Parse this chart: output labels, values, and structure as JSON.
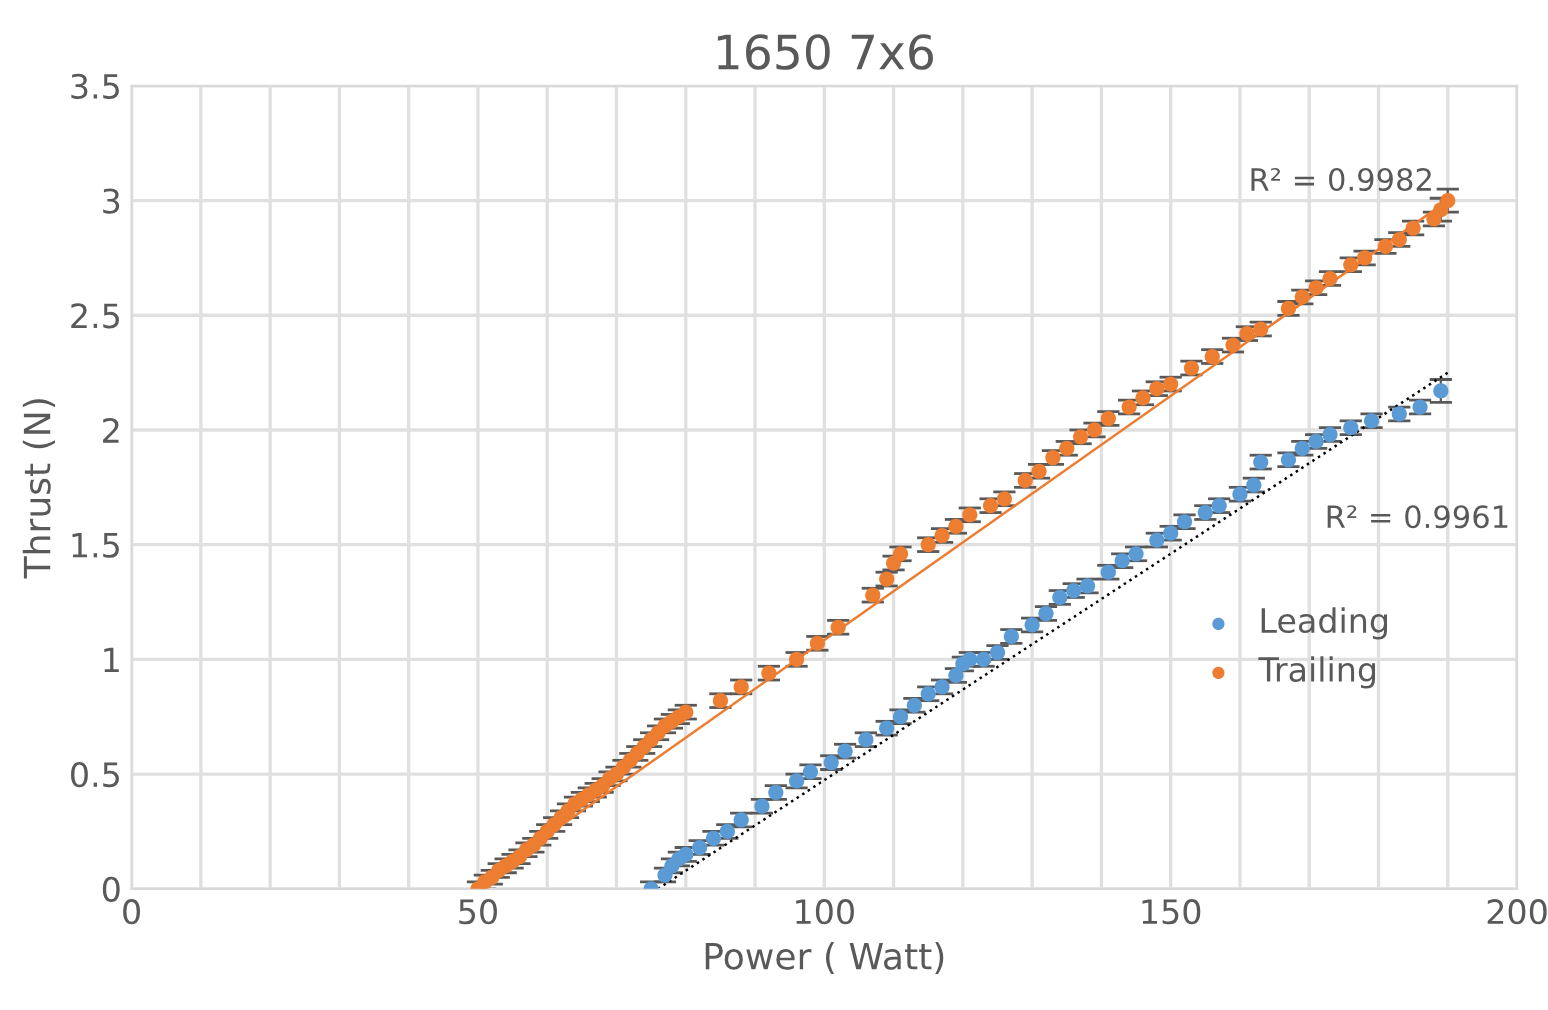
{
  "chart_data": {
    "type": "scatter",
    "title": "1650 7x6",
    "xlabel": "Power ( Watt)",
    "ylabel": "Thrust (N)",
    "xlim": [
      0,
      200
    ],
    "ylim": [
      0,
      3.5
    ],
    "xticks": [
      0,
      {
        "value": 10,
        "label": null
      },
      {
        "value": 20,
        "label": null
      },
      {
        "value": 30,
        "label": null
      },
      {
        "value": 40,
        "label": null
      },
      50,
      {
        "value": 60,
        "label": null
      },
      {
        "value": 70,
        "label": null
      },
      {
        "value": 80,
        "label": null
      },
      {
        "value": 90,
        "label": null
      },
      100,
      {
        "value": 110,
        "label": null
      },
      {
        "value": 120,
        "label": null
      },
      {
        "value": 130,
        "label": null
      },
      {
        "value": 140,
        "label": null
      },
      150,
      {
        "value": 160,
        "label": null
      },
      {
        "value": 170,
        "label": null
      },
      {
        "value": 180,
        "label": null
      },
      {
        "value": 190,
        "label": null
      },
      200
    ],
    "yticks": [
      0,
      0.5,
      1,
      1.5,
      2,
      2.5,
      3,
      3.5
    ],
    "grid": true,
    "legend": "right",
    "series": [
      {
        "name": "Leading",
        "color": "#5b9bd5",
        "marker": "circle",
        "x": [
          75,
          77,
          78,
          79,
          80,
          82,
          84,
          86,
          88,
          91,
          93,
          96,
          98,
          101,
          103,
          106,
          109,
          111,
          113,
          115,
          117,
          119,
          120,
          121,
          123,
          125,
          127,
          130,
          132,
          134,
          136,
          138,
          141,
          143,
          145,
          148,
          150,
          152,
          155,
          157,
          160,
          162,
          163,
          167,
          169,
          171,
          173,
          176,
          179,
          183,
          186,
          189
        ],
        "values": [
          0,
          0.06,
          0.1,
          0.13,
          0.15,
          0.18,
          0.22,
          0.25,
          0.3,
          0.36,
          0.42,
          0.47,
          0.51,
          0.55,
          0.6,
          0.65,
          0.7,
          0.75,
          0.8,
          0.85,
          0.88,
          0.93,
          0.98,
          1.0,
          1.0,
          1.03,
          1.1,
          1.15,
          1.2,
          1.27,
          1.3,
          1.32,
          1.38,
          1.43,
          1.46,
          1.52,
          1.55,
          1.6,
          1.64,
          1.67,
          1.72,
          1.76,
          1.86,
          1.87,
          1.92,
          1.95,
          1.98,
          2.01,
          2.04,
          2.07,
          2.1,
          2.17
        ],
        "errors": [
          0.03,
          0.03,
          0.03,
          0.03,
          0.03,
          0.03,
          0.03,
          0.03,
          0.03,
          0.03,
          0.03,
          0.03,
          0.03,
          0.03,
          0.03,
          0.03,
          0.03,
          0.03,
          0.03,
          0.03,
          0.03,
          0.03,
          0.03,
          0.03,
          0.03,
          0.03,
          0.03,
          0.03,
          0.03,
          0.03,
          0.03,
          0.03,
          0.03,
          0.03,
          0.03,
          0.03,
          0.03,
          0.03,
          0.03,
          0.03,
          0.03,
          0.03,
          0.03,
          0.03,
          0.03,
          0.03,
          0.03,
          0.03,
          0.03,
          0.03,
          0.03,
          0.05
        ]
      },
      {
        "name": "Trailing",
        "color": "#ed7d31",
        "marker": "circle",
        "x": [
          50,
          51,
          52,
          53,
          54,
          55,
          56,
          57,
          58,
          59,
          60,
          61,
          62,
          63,
          64,
          65,
          66,
          67,
          68,
          69,
          70,
          71,
          72,
          73,
          74,
          75,
          76,
          77,
          78,
          79,
          80,
          85,
          88,
          92,
          96,
          99,
          102,
          107,
          109,
          110,
          111,
          115,
          117,
          119,
          121,
          124,
          126,
          129,
          131,
          133,
          135,
          137,
          139,
          141,
          144,
          146,
          148,
          150,
          153,
          156,
          159,
          161,
          163,
          167,
          169,
          171,
          173,
          176,
          178,
          181,
          183,
          185,
          188,
          189,
          190
        ],
        "values": [
          0,
          0.03,
          0.05,
          0.08,
          0.1,
          0.12,
          0.14,
          0.17,
          0.19,
          0.22,
          0.25,
          0.28,
          0.31,
          0.34,
          0.37,
          0.39,
          0.41,
          0.43,
          0.45,
          0.48,
          0.5,
          0.53,
          0.56,
          0.59,
          0.62,
          0.65,
          0.68,
          0.71,
          0.73,
          0.75,
          0.77,
          0.82,
          0.88,
          0.94,
          1.0,
          1.07,
          1.14,
          1.28,
          1.35,
          1.42,
          1.46,
          1.5,
          1.54,
          1.58,
          1.63,
          1.67,
          1.7,
          1.78,
          1.82,
          1.88,
          1.92,
          1.97,
          2.0,
          2.05,
          2.1,
          2.14,
          2.18,
          2.2,
          2.27,
          2.32,
          2.37,
          2.42,
          2.44,
          2.53,
          2.58,
          2.62,
          2.66,
          2.72,
          2.75,
          2.8,
          2.83,
          2.88,
          2.92,
          2.96,
          3.0
        ],
        "errors": [
          0.03,
          0.03,
          0.03,
          0.03,
          0.03,
          0.03,
          0.03,
          0.03,
          0.03,
          0.03,
          0.03,
          0.03,
          0.03,
          0.03,
          0.03,
          0.03,
          0.03,
          0.03,
          0.03,
          0.03,
          0.03,
          0.03,
          0.03,
          0.03,
          0.03,
          0.03,
          0.03,
          0.03,
          0.03,
          0.03,
          0.03,
          0.03,
          0.03,
          0.03,
          0.03,
          0.03,
          0.03,
          0.03,
          0.03,
          0.03,
          0.03,
          0.03,
          0.03,
          0.03,
          0.03,
          0.03,
          0.03,
          0.03,
          0.03,
          0.03,
          0.03,
          0.03,
          0.03,
          0.03,
          0.03,
          0.03,
          0.03,
          0.03,
          0.03,
          0.03,
          0.03,
          0.03,
          0.03,
          0.03,
          0.03,
          0.03,
          0.03,
          0.03,
          0.03,
          0.03,
          0.03,
          0.03,
          0.03,
          0.05,
          0.05
        ]
      },
      {
        "type": "line",
        "color": "#ed7d31",
        "line_style": "solid",
        "x": [
          50,
          190
        ],
        "values": [
          0.02,
          3.0
        ]
      },
      {
        "type": "line",
        "color": "#000000",
        "line_style": "dotted",
        "x": [
          76,
          190
        ],
        "values": [
          0,
          2.25
        ]
      }
    ],
    "annotations": [
      "R² = 0.9982",
      "R² = 0.9961"
    ]
  }
}
